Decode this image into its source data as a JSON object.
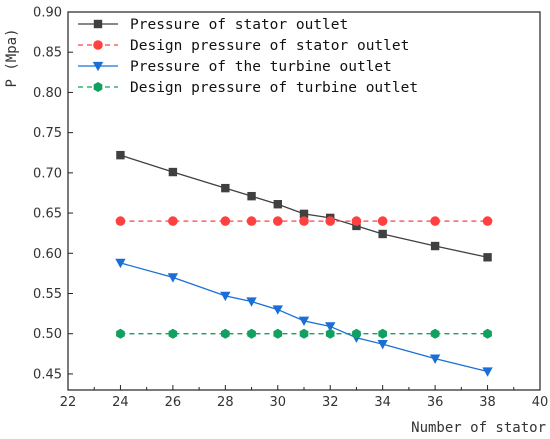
{
  "chart_data": {
    "type": "line",
    "title": "",
    "xlabel": "Number of stator",
    "ylabel": "P (Mpa)",
    "xlim": [
      22,
      40
    ],
    "ylim": [
      0.43,
      0.9
    ],
    "x_ticks": [
      22,
      24,
      26,
      28,
      30,
      32,
      34,
      36,
      38,
      40
    ],
    "y_ticks": [
      0.45,
      0.5,
      0.55,
      0.6,
      0.65,
      0.7,
      0.75,
      0.8,
      0.85,
      0.9
    ],
    "legend_position": "top-left",
    "grid": false,
    "series": [
      {
        "name": "Pressure of stator outlet",
        "color": "#404040",
        "line_style": "solid",
        "marker": "square",
        "x": [
          24,
          26,
          28,
          29,
          30,
          31,
          32,
          33,
          34,
          36,
          38
        ],
        "y": [
          0.722,
          0.701,
          0.681,
          0.671,
          0.661,
          0.649,
          0.644,
          0.634,
          0.624,
          0.609,
          0.595
        ]
      },
      {
        "name": "Design pressure of stator outlet",
        "color": "#ff4040",
        "line_style": "dashed",
        "marker": "circle",
        "x": [
          24,
          26,
          28,
          29,
          30,
          31,
          32,
          33,
          34,
          36,
          38
        ],
        "y": [
          0.64,
          0.64,
          0.64,
          0.64,
          0.64,
          0.64,
          0.64,
          0.64,
          0.64,
          0.64,
          0.64
        ]
      },
      {
        "name": "Pressure of the turbine outlet",
        "color": "#1a6fd6",
        "line_style": "solid",
        "marker": "triangle-down",
        "x": [
          24,
          26,
          28,
          29,
          30,
          31,
          32,
          33,
          34,
          36,
          38
        ],
        "y": [
          0.588,
          0.57,
          0.547,
          0.54,
          0.53,
          0.516,
          0.509,
          0.495,
          0.487,
          0.469,
          0.453
        ]
      },
      {
        "name": "Design pressure of turbine outlet",
        "color": "#10a060",
        "line_style": "dashed",
        "marker": "hexagon",
        "x": [
          24,
          26,
          28,
          29,
          30,
          31,
          32,
          33,
          34,
          36,
          38
        ],
        "y": [
          0.5,
          0.5,
          0.5,
          0.5,
          0.5,
          0.5,
          0.5,
          0.5,
          0.5,
          0.5,
          0.5
        ]
      }
    ]
  }
}
